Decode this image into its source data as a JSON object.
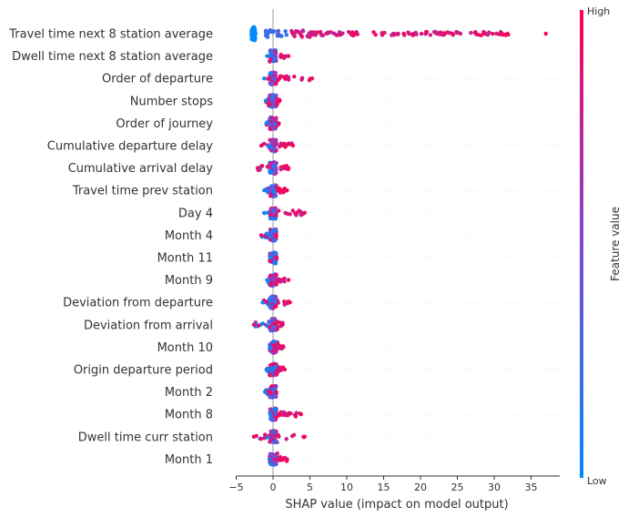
{
  "chart_data": {
    "type": "scatter",
    "subtype": "shap-beeswarm",
    "xlabel": "SHAP value (impact on model output)",
    "xlim": [
      -5,
      38
    ],
    "xticks": [
      -5,
      0,
      5,
      10,
      15,
      20,
      25,
      30,
      35
    ],
    "colorbar": {
      "high_label": "High",
      "low_label": "Low",
      "title": "Feature value",
      "low_color": "#008bfb",
      "high_color": "#ff0052"
    },
    "features": [
      {
        "name": "Travel time next 8 station average",
        "low_color_range": [
          -3,
          2
        ],
        "high_color_range": [
          2,
          37
        ],
        "spread": 16,
        "max": 37,
        "min": -3
      },
      {
        "name": "Dwell time next 8 station average",
        "min": -0.8,
        "max": 2.1
      },
      {
        "name": "Order of departure",
        "min": -1.2,
        "max": 5.3
      },
      {
        "name": "Number stops",
        "min": -1.0,
        "max": 0.9
      },
      {
        "name": "Order of journey",
        "min": -0.9,
        "max": 0.8
      },
      {
        "name": "Cumulative departure delay",
        "min": -1.6,
        "max": 2.7
      },
      {
        "name": "Cumulative arrival delay",
        "min": -2.1,
        "max": 2.1
      },
      {
        "name": "Travel time prev station",
        "min": -1.2,
        "max": 1.9
      },
      {
        "name": "Day 4",
        "min": -1.2,
        "max": 4.3
      },
      {
        "name": "Month 4",
        "min": -1.6,
        "max": 0.4
      },
      {
        "name": "Month 11",
        "min": -0.3,
        "max": 0.5
      },
      {
        "name": "Month 9",
        "min": -0.8,
        "max": 2.1
      },
      {
        "name": "Deviation from departure",
        "min": -1.4,
        "max": 2.3
      },
      {
        "name": "Deviation from arrival",
        "min": -2.6,
        "max": 1.3
      },
      {
        "name": "Month 10",
        "min": -0.4,
        "max": 1.4
      },
      {
        "name": "Origin departure period",
        "min": -0.9,
        "max": 1.6
      },
      {
        "name": "Month 2",
        "min": -1.1,
        "max": 0.4
      },
      {
        "name": "Month 8",
        "min": -0.3,
        "max": 3.8
      },
      {
        "name": "Dwell time curr station",
        "min": -2.6,
        "max": 4.3
      },
      {
        "name": "Month 1",
        "min": -0.5,
        "max": 1.9
      }
    ]
  }
}
